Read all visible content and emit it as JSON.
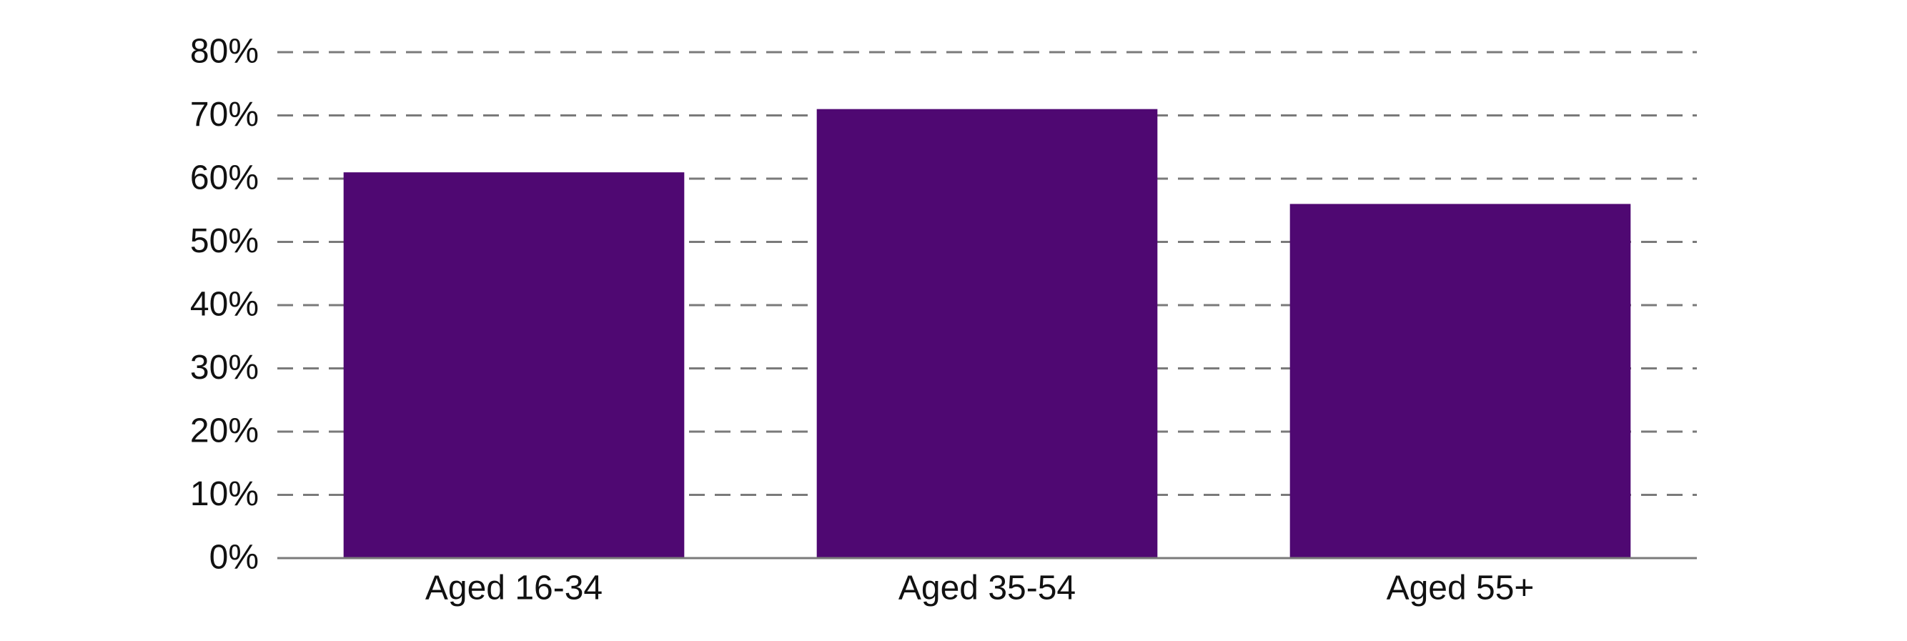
{
  "chart_data": {
    "type": "bar",
    "categories": [
      "Aged 16-34",
      "Aged 35-54",
      "Aged 55+"
    ],
    "values": [
      61,
      71,
      56
    ],
    "color": "#4f0872",
    "ylim": [
      0,
      80
    ],
    "yticks": [
      {
        "value": 0,
        "label": "0%"
      },
      {
        "value": 10,
        "label": "10%"
      },
      {
        "value": 20,
        "label": "20%"
      },
      {
        "value": 30,
        "label": "30%"
      },
      {
        "value": 40,
        "label": "40%"
      },
      {
        "value": 50,
        "label": "50%"
      },
      {
        "value": 60,
        "label": "60%"
      },
      {
        "value": 70,
        "label": "70%"
      },
      {
        "value": 80,
        "label": "80%"
      }
    ],
    "grid": true
  }
}
